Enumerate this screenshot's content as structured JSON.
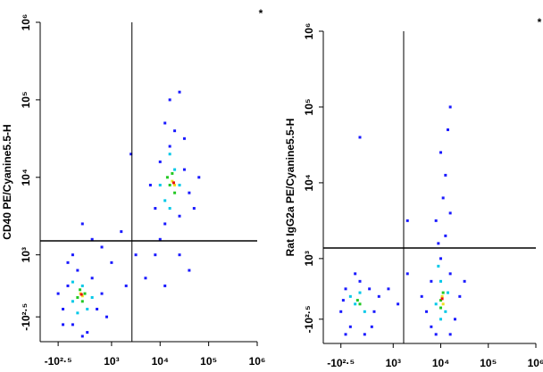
{
  "chart_data": [
    {
      "type": "scatter",
      "ylabel": "CD40 PE/Cyanine5.5-H",
      "annotation": "*",
      "xlim": [
        1.53,
        6
      ],
      "ylim": [
        1.88,
        6
      ],
      "xticks": [
        {
          "value": 1.9,
          "label": "-10²·⁵"
        },
        {
          "value": 3,
          "label": "10³"
        },
        {
          "value": 4,
          "label": "10⁴"
        },
        {
          "value": 5,
          "label": "10⁵"
        },
        {
          "value": 6,
          "label": "10⁶"
        }
      ],
      "yticks": [
        {
          "value": 2.2,
          "label": "-10²·⁵"
        },
        {
          "value": 3,
          "label": "10³"
        },
        {
          "value": 4,
          "label": "10⁴"
        },
        {
          "value": 5,
          "label": "10⁵"
        },
        {
          "value": 6,
          "label": "10⁶"
        }
      ],
      "gates": {
        "x": 3.42,
        "y": 3.18
      },
      "series": [
        {
          "color": "#1a1aff",
          "x": [
            2.0,
            2.1,
            2.2,
            2.3,
            2.5,
            2.6,
            2.7,
            2.1,
            1.9,
            2.8,
            2.4,
            2.2,
            2.9,
            2.0,
            2.8,
            3.0,
            3.2,
            2.6,
            3.3,
            3.5,
            2.4,
            3.9,
            4.0,
            4.1,
            4.2,
            4.4,
            4.5,
            4.6,
            3.8,
            4.3,
            4.0,
            4.4,
            4.1,
            4.7,
            3.9,
            4.5,
            4.2,
            4.4,
            3.4,
            4.6,
            3.7,
            4.8,
            4.1
          ],
          "y": [
            2.3,
            2.6,
            2.1,
            2.8,
            2.0,
            2.7,
            2.3,
            2.9,
            2.5,
            2.5,
            1.95,
            3.0,
            2.2,
            2.1,
            3.1,
            2.9,
            3.3,
            3.2,
            2.6,
            3.0,
            3.4,
            3.6,
            4.2,
            3.4,
            4.4,
            3.5,
            4.1,
            3.8,
            3.9,
            4.6,
            3.2,
            3.0,
            4.7,
            3.6,
            3.0,
            4.5,
            5.0,
            5.1,
            4.3,
            2.8,
            2.7,
            4.0,
            2.6
          ]
        },
        {
          "color": "#00c8e8",
          "x": [
            2.2,
            2.4,
            2.5,
            2.3,
            2.6,
            2.2,
            4.1,
            4.3,
            4.2,
            4.4,
            4.2,
            4.0
          ],
          "y": [
            2.4,
            2.6,
            2.3,
            2.25,
            2.45,
            2.65,
            3.7,
            4.1,
            3.6,
            3.9,
            4.3,
            3.9
          ]
        },
        {
          "color": "#22c822",
          "x": [
            2.3,
            2.4,
            2.35,
            2.45,
            4.2,
            4.3,
            4.25,
            4.15
          ],
          "y": [
            2.45,
            2.4,
            2.55,
            2.5,
            3.9,
            3.8,
            4.05,
            4.0
          ]
        },
        {
          "color": "#f0e020",
          "x": [
            2.36,
            2.4,
            4.25,
            4.3
          ],
          "y": [
            2.5,
            2.47,
            3.95,
            3.9
          ]
        },
        {
          "color": "#e81010",
          "x": [
            2.38,
            4.28
          ],
          "y": [
            2.49,
            3.93
          ]
        }
      ]
    },
    {
      "type": "scatter",
      "ylabel": "Rat IgG2a PE/Cyanine5.5-H",
      "annotation": "*",
      "xlim": [
        1.53,
        6
      ],
      "ylim": [
        1.88,
        6
      ],
      "xticks": [
        {
          "value": 1.9,
          "label": "-10²·⁵"
        },
        {
          "value": 3,
          "label": "10³"
        },
        {
          "value": 4,
          "label": "10⁴"
        },
        {
          "value": 5,
          "label": "10⁵"
        },
        {
          "value": 6,
          "label": "10⁶"
        }
      ],
      "yticks": [
        {
          "value": 2.2,
          "label": "-10²·⁵"
        },
        {
          "value": 3,
          "label": "10³"
        },
        {
          "value": 4,
          "label": "10⁴"
        },
        {
          "value": 5,
          "label": "10⁵"
        },
        {
          "value": 6,
          "label": "10⁶"
        }
      ],
      "gates": {
        "x": 3.22,
        "y": 3.14
      },
      "series": [
        {
          "color": "#1a1aff",
          "x": [
            1.9,
            2.0,
            2.1,
            2.2,
            2.4,
            2.5,
            2.6,
            2.0,
            2.3,
            2.7,
            1.95,
            2.55,
            3.7,
            3.8,
            3.9,
            4.2,
            4.3,
            4.4,
            3.8,
            4.2,
            3.6,
            4.5,
            4.0,
            4.1,
            3.9,
            4.05,
            4.1,
            4.0,
            4.15,
            4.2,
            3.95,
            4.2,
            3.1,
            3.3,
            2.9,
            2.3,
            3.3
          ],
          "y": [
            2.3,
            2.6,
            2.1,
            2.8,
            2.0,
            2.6,
            2.3,
            2.0,
            2.7,
            2.5,
            2.45,
            2.1,
            2.3,
            2.7,
            2.0,
            2.8,
            2.2,
            2.5,
            2.1,
            2.0,
            2.5,
            2.7,
            3.0,
            3.3,
            3.5,
            3.8,
            4.1,
            4.4,
            4.7,
            5.0,
            3.2,
            3.6,
            2.4,
            2.8,
            2.6,
            4.6,
            3.5
          ]
        },
        {
          "color": "#00c8e8",
          "x": [
            2.2,
            2.3,
            2.4,
            2.1,
            3.9,
            4.0,
            4.1,
            4.0,
            4.15,
            3.95
          ],
          "y": [
            2.4,
            2.55,
            2.3,
            2.5,
            2.4,
            2.7,
            2.3,
            2.2,
            2.55,
            2.9
          ]
        },
        {
          "color": "#22c822",
          "x": [
            2.25,
            2.3,
            4.0,
            4.05,
            4.0
          ],
          "y": [
            2.45,
            2.4,
            2.45,
            2.55,
            2.35
          ]
        },
        {
          "color": "#f0e020",
          "x": [
            4.03,
            4.05
          ],
          "y": [
            2.5,
            2.4
          ]
        },
        {
          "color": "#e81010",
          "x": [
            4.03
          ],
          "y": [
            2.47
          ]
        }
      ]
    }
  ]
}
